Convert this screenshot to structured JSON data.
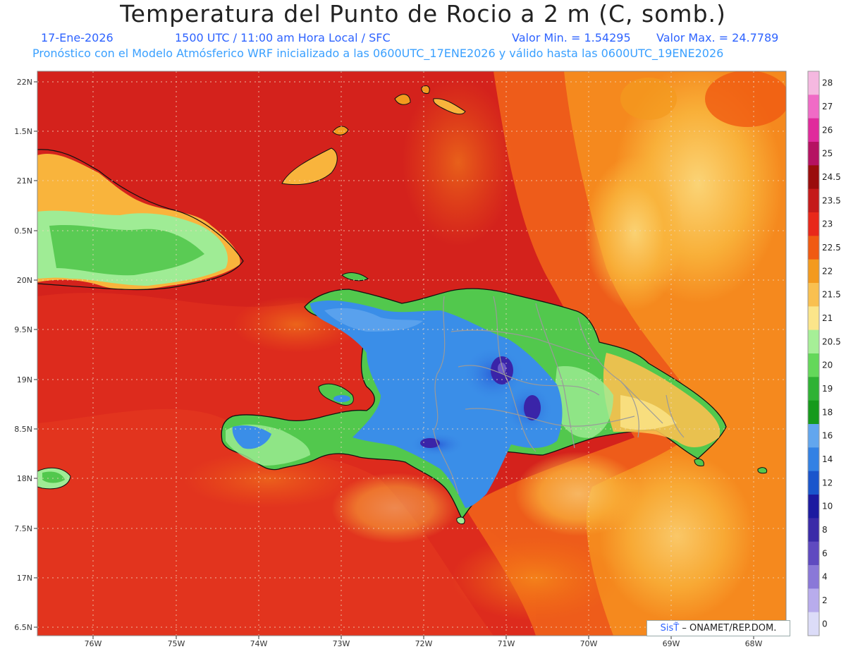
{
  "header": {
    "title": "Temperatura del Punto de Rocio a 2 m (C, somb.)",
    "date": "17-Ene-2026",
    "time": "1500 UTC / 11:00 am Hora Local / SFC",
    "min_label": "Valor Min. = 1.54295",
    "max_label": "Valor Max. = 24.7789",
    "model_info": "Pronóstico con el Modelo Atmósferico WRF inicializado a las 0600UTC_17ENE2026 y válido hasta las  0600UTC_19ENE2026"
  },
  "map": {
    "lat_ticks": [
      "22N",
      "1.5N",
      "21N",
      "0.5N",
      "20N",
      "9.5N",
      "19N",
      "8.5N",
      "18N",
      "7.5N",
      "17N",
      "6.5N"
    ],
    "lon_ticks": [
      "76W",
      "75W",
      "74W",
      "73W",
      "72W",
      "71W",
      "70W",
      "69W",
      "68W"
    ],
    "lat_range": [
      16.4,
      22.05
    ],
    "lon_range": [
      -76.65,
      -67.6
    ],
    "colors": {
      "ocean_dark": "#cf1e1e",
      "ocean_mid": "#e8381f",
      "warm_orange": "#f36f13",
      "warm_yellow": "#f9b43c",
      "pale_yellow": "#fbdc80",
      "land_green": "#52c84d",
      "land_light_green": "#9fec95",
      "mountain_blue": "#3a8ee8",
      "peak_purple": "#3a24a8"
    }
  },
  "colorbar": {
    "levels": [
      "28",
      "27",
      "26",
      "25",
      "24.5",
      "23.5",
      "23",
      "22.5",
      "22",
      "21.5",
      "21",
      "20.5",
      "20",
      "19",
      "18",
      "16",
      "14",
      "12",
      "10",
      "8",
      "6",
      "4",
      "2",
      "0"
    ],
    "colors": [
      "#f5b8e0",
      "#f06bc6",
      "#e02a9c",
      "#b51262",
      "#9a0d0d",
      "#c51a1a",
      "#e8281a",
      "#f05a12",
      "#f39a1e",
      "#f9c050",
      "#fbe58a",
      "#a6ef97",
      "#64d85a",
      "#2fb234",
      "#169a1c",
      "#62a6ee",
      "#3381e4",
      "#1a55cc",
      "#1c1aa0",
      "#3a2aa8",
      "#5f4ac0",
      "#8a78d8",
      "#b8acec",
      "#dcdcf8"
    ]
  },
  "credit": {
    "brand": "SisT̃",
    "text": "– ONAMET/REP.DOM."
  }
}
